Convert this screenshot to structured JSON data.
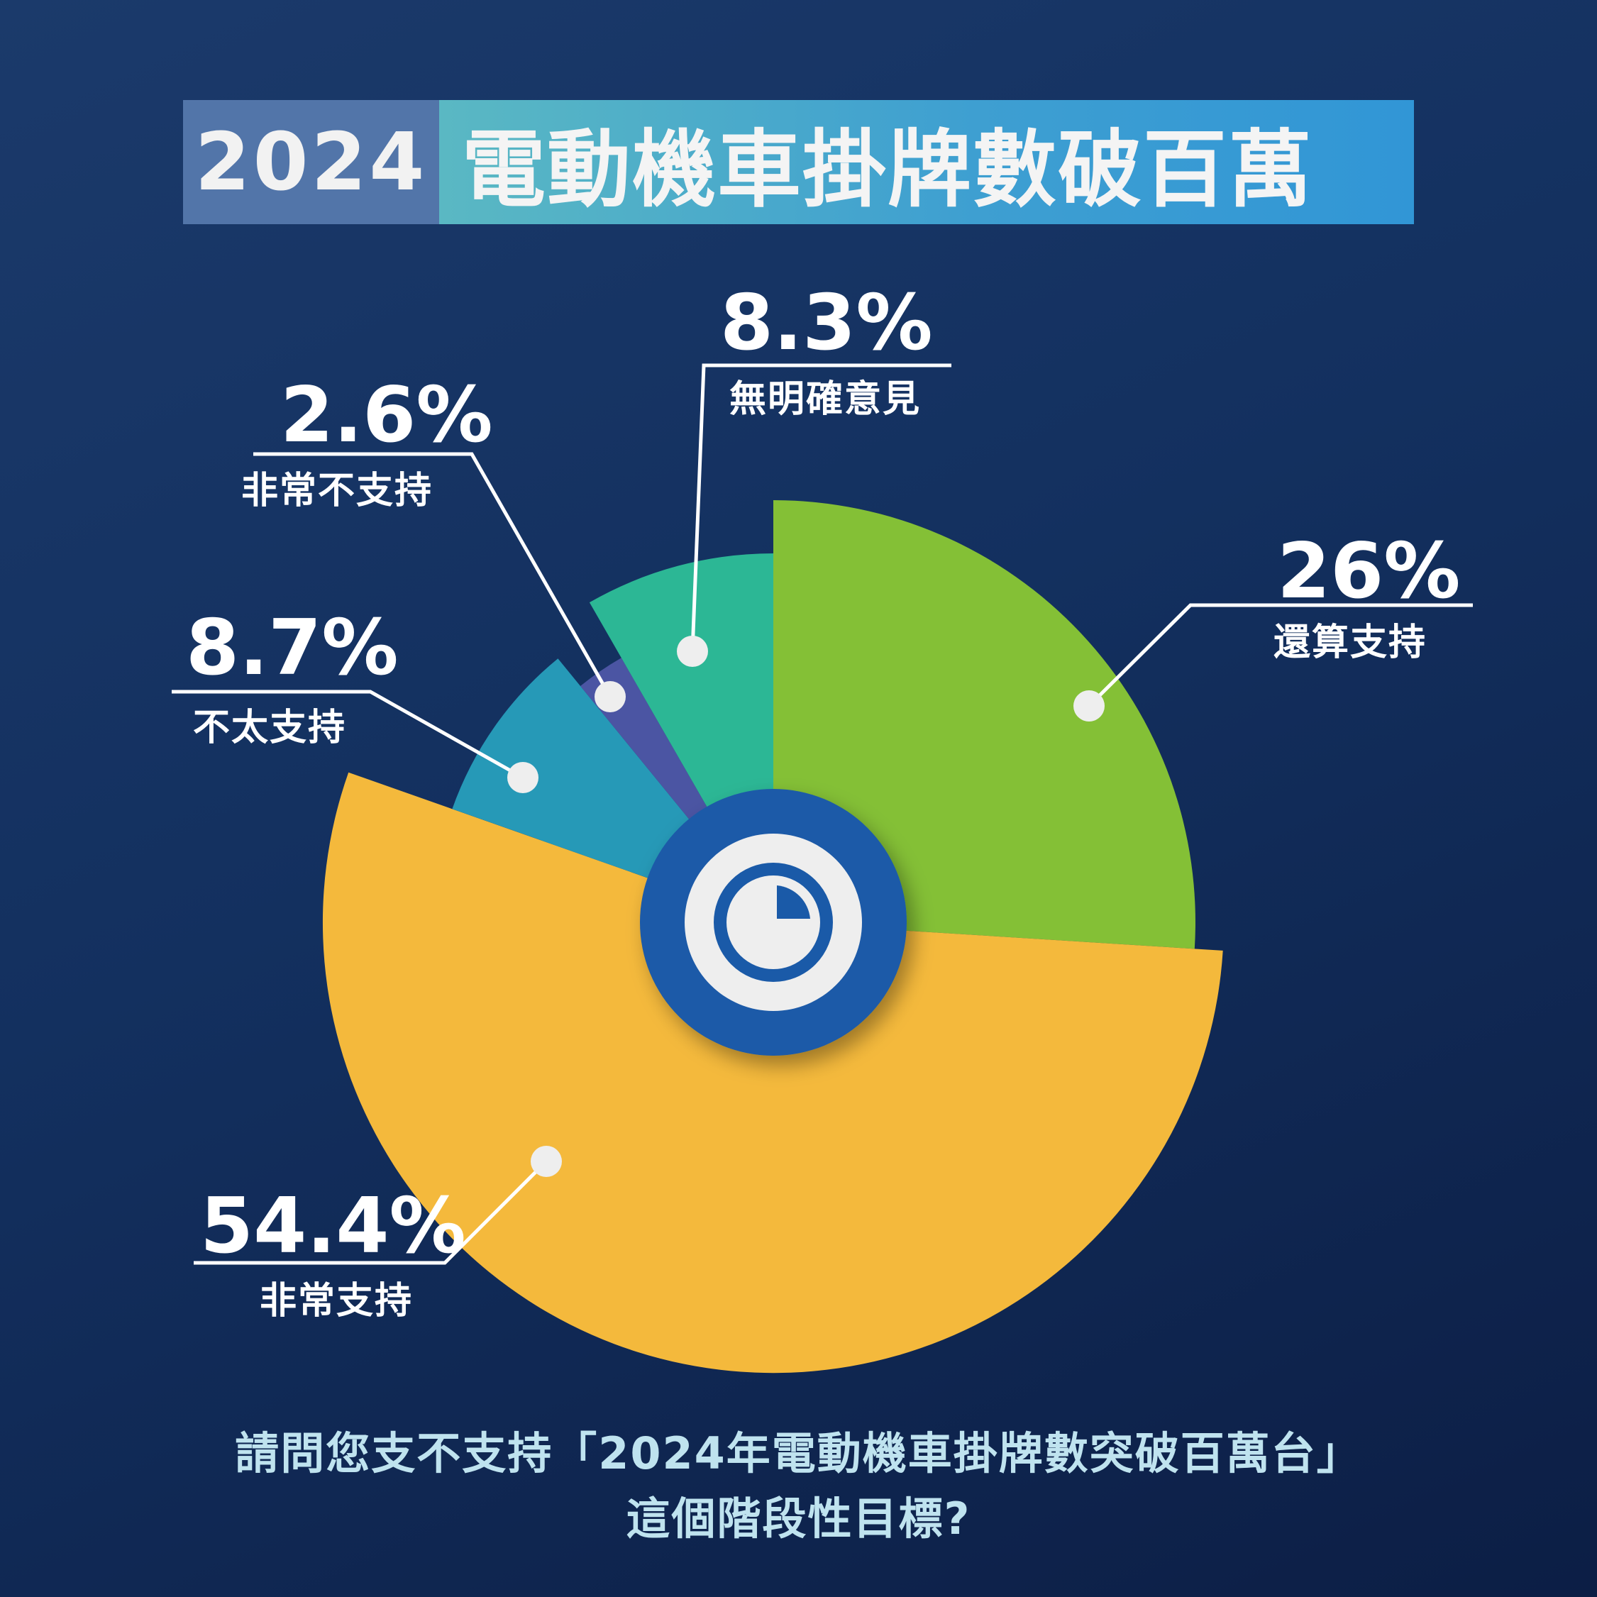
{
  "title": {
    "year": "2024",
    "text": "電動機車掛牌數破百萬"
  },
  "question": {
    "line1": "請問您支不支持「2024年電動機車掛牌數突破百萬台」",
    "line2": "這個階段性目標?"
  },
  "center_icon": "pie-chart-icon",
  "colors": {
    "background": "#14305e",
    "very_support": "#f4b93c",
    "somewhat_support": "#84c036",
    "no_opinion": "#2cb795",
    "very_not_support": "#4b55a3",
    "not_really_support": "#2699b7",
    "center_ring": "#1a5aa8"
  },
  "labels": {
    "very_support": {
      "pct": "54.4%",
      "name": "非常支持"
    },
    "somewhat_support": {
      "pct": "26%",
      "name": "還算支持"
    },
    "no_opinion": {
      "pct": "8.3%",
      "name": "無明確意見"
    },
    "very_not_support": {
      "pct": "2.6%",
      "name": "非常不支持"
    },
    "not_really_support": {
      "pct": "8.7%",
      "name": "不太支持"
    }
  },
  "chart_data": {
    "type": "pie",
    "title": "電動機車掛牌數破百萬",
    "slices": [
      {
        "label": "還算支持",
        "value": 26,
        "color": "#84c036"
      },
      {
        "label": "非常支持",
        "value": 54.4,
        "color": "#f4b93c"
      },
      {
        "label": "不太支持",
        "value": 8.7,
        "color": "#2699b7"
      },
      {
        "label": "非常不支持",
        "value": 2.6,
        "color": "#4b55a3"
      },
      {
        "label": "無明確意見",
        "value": 8.3,
        "color": "#2cb795"
      }
    ]
  }
}
